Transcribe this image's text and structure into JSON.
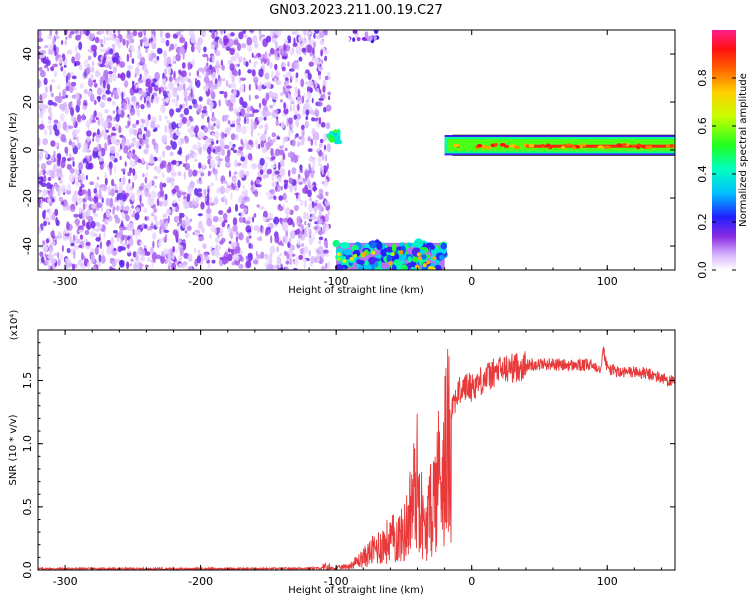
{
  "title": "GN03.2023.211.00.19.C27",
  "chart_data": [
    {
      "type": "heatmap",
      "name": "spectrogram",
      "xlabel": "Height of straight line (km)",
      "ylabel": "Frequency (Hz)",
      "xlim": [
        -320,
        150
      ],
      "ylim": [
        -50,
        50
      ],
      "xticks": [
        -300,
        -200,
        -100,
        0,
        100
      ],
      "yticks": [
        -40,
        -20,
        0,
        20,
        40
      ],
      "colorbar": {
        "label": "Normalized spectral amplitude",
        "range": [
          0,
          1
        ],
        "ticks": [
          0.0,
          0.2,
          0.4,
          0.6,
          0.8
        ]
      },
      "regions": [
        {
          "x_range": [
            -320,
            -105
          ],
          "y_range": [
            -50,
            50
          ],
          "level": 0.12,
          "description_key": "noise"
        },
        {
          "x_range": [
            -105,
            -97
          ],
          "y_range": [
            3,
            8
          ],
          "level": 0.45
        },
        {
          "x_range": [
            -100,
            -20
          ],
          "y_range": [
            -50,
            -37
          ],
          "level": 0.35
        },
        {
          "x_range": [
            -95,
            -70
          ],
          "y_range": [
            46,
            50
          ],
          "level": 0.1
        },
        {
          "x_range": [
            -20,
            150
          ],
          "y_range": [
            -1,
            5
          ],
          "level": 0.9
        }
      ]
    },
    {
      "type": "line",
      "name": "snr",
      "xlabel": "Height of straight line (km)",
      "ylabel": "SNR (10 * v/v)",
      "multiplier": "(x10⁴)",
      "xlim": [
        -320,
        150
      ],
      "ylim": [
        0,
        1.9
      ],
      "xticks": [
        -300,
        -200,
        -100,
        0,
        100
      ],
      "yticks": [
        0.0,
        0.5,
        1.0,
        1.5
      ],
      "color": "#e83a3a",
      "x": [
        -320,
        -300,
        -250,
        -200,
        -150,
        -110,
        -100,
        -90,
        -80,
        -70,
        -60,
        -50,
        -45,
        -40,
        -35,
        -30,
        -25,
        -20,
        -15,
        -10,
        -5,
        0,
        10,
        20,
        30,
        40,
        50,
        60,
        70,
        80,
        90,
        95,
        97,
        100,
        110,
        120,
        130,
        140,
        150
      ],
      "y": [
        0.01,
        0.01,
        0.01,
        0.01,
        0.01,
        0.015,
        0.02,
        0.04,
        0.12,
        0.22,
        0.3,
        0.35,
        0.6,
        0.9,
        0.35,
        0.6,
        0.9,
        1.15,
        1.3,
        1.4,
        1.45,
        1.45,
        1.52,
        1.58,
        1.6,
        1.62,
        1.63,
        1.63,
        1.62,
        1.62,
        1.62,
        1.6,
        1.75,
        1.6,
        1.56,
        1.57,
        1.55,
        1.52,
        1.48
      ]
    }
  ]
}
